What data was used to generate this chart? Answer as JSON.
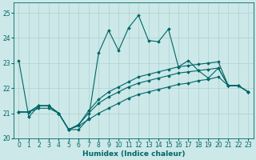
{
  "xlabel": "Humidex (Indice chaleur)",
  "xlim": [
    -0.5,
    23.5
  ],
  "ylim": [
    20,
    25.4
  ],
  "yticks": [
    20,
    21,
    22,
    23,
    24,
    25
  ],
  "xticks": [
    0,
    1,
    2,
    3,
    4,
    5,
    6,
    7,
    8,
    9,
    10,
    11,
    12,
    13,
    14,
    15,
    16,
    17,
    18,
    19,
    20,
    21,
    22,
    23
  ],
  "bg_color": "#cce8e8",
  "grid_color": "#b0d0d0",
  "line_color": "#006666",
  "lines": [
    {
      "x": [
        0,
        1,
        2,
        3,
        4,
        5,
        6,
        7,
        8,
        9,
        10,
        11,
        12,
        13,
        14,
        15,
        16,
        17,
        18,
        19,
        20,
        21,
        22,
        23
      ],
      "y": [
        23.1,
        20.85,
        21.3,
        21.3,
        21.0,
        20.35,
        20.35,
        20.8,
        23.4,
        24.3,
        23.5,
        24.4,
        24.9,
        23.9,
        23.85,
        24.35,
        22.85,
        23.1,
        22.7,
        22.4,
        22.8,
        22.1,
        22.1,
        21.85
      ]
    },
    {
      "x": [
        0,
        1,
        2,
        3,
        4,
        5,
        6,
        7,
        8,
        9,
        10,
        11,
        12,
        13,
        14,
        15,
        16,
        17,
        18,
        19,
        20,
        21,
        22,
        23
      ],
      "y": [
        21.05,
        21.05,
        21.3,
        21.3,
        21.0,
        20.35,
        20.55,
        21.1,
        21.55,
        21.85,
        22.05,
        22.25,
        22.45,
        22.55,
        22.65,
        22.75,
        22.85,
        22.9,
        22.95,
        23.0,
        23.05,
        22.1,
        22.1,
        21.85
      ]
    },
    {
      "x": [
        0,
        1,
        2,
        3,
        4,
        5,
        6,
        7,
        8,
        9,
        10,
        11,
        12,
        13,
        14,
        15,
        16,
        17,
        18,
        19,
        20,
        21,
        22,
        23
      ],
      "y": [
        21.05,
        21.05,
        21.3,
        21.3,
        21.0,
        20.35,
        20.55,
        21.0,
        21.4,
        21.65,
        21.85,
        22.05,
        22.2,
        22.3,
        22.4,
        22.5,
        22.6,
        22.65,
        22.7,
        22.75,
        22.8,
        22.1,
        22.1,
        21.85
      ]
    },
    {
      "x": [
        0,
        1,
        2,
        3,
        4,
        5,
        6,
        7,
        8,
        9,
        10,
        11,
        12,
        13,
        14,
        15,
        16,
        17,
        18,
        19,
        20,
        21,
        22,
        23
      ],
      "y": [
        21.05,
        21.05,
        21.2,
        21.2,
        21.0,
        20.35,
        20.5,
        20.75,
        21.0,
        21.2,
        21.4,
        21.6,
        21.75,
        21.85,
        21.95,
        22.05,
        22.15,
        22.2,
        22.3,
        22.35,
        22.45,
        22.1,
        22.1,
        21.85
      ]
    }
  ],
  "marker": "D",
  "markersize": 1.8,
  "linewidth": 0.8,
  "tick_fontsize": 5.5,
  "label_fontsize": 6.5
}
